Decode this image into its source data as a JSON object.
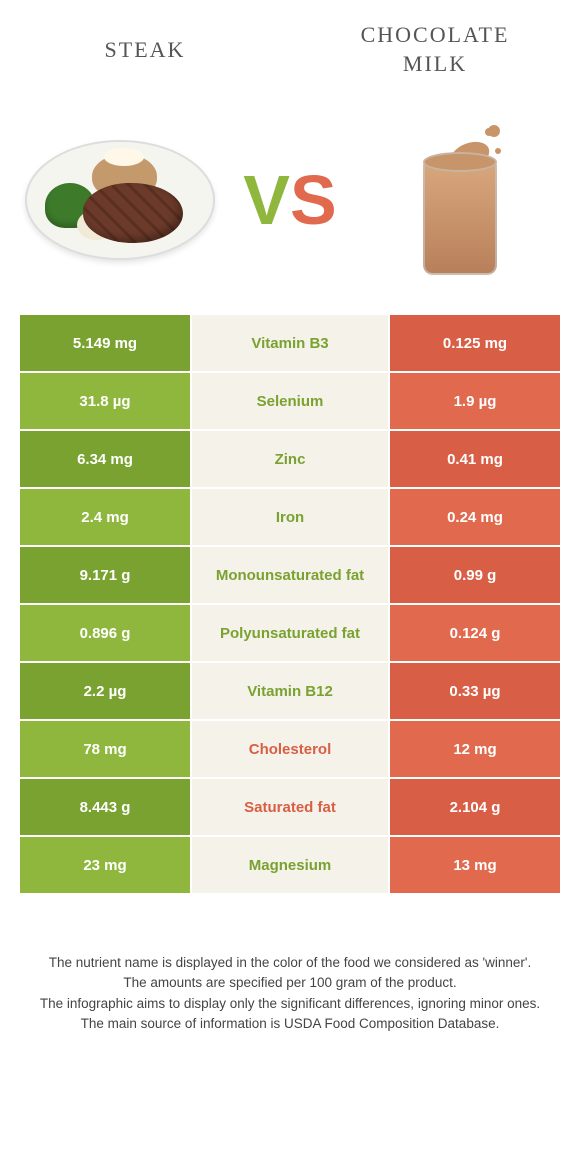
{
  "header": {
    "left": "STEAK",
    "right_line1": "CHOCOLATE",
    "right_line2": "MILK"
  },
  "vs": {
    "v": "V",
    "s": "S"
  },
  "colors": {
    "green_dark": "#7aa230",
    "green_light": "#8fb73e",
    "orange_dark": "#d85f45",
    "orange_light": "#e0694e",
    "mid_bg": "#f4f2e9",
    "text_green": "#7aa230",
    "text_orange": "#d85f45"
  },
  "rows": [
    {
      "left": "5.149 mg",
      "label": "Vitamin B3",
      "right": "0.125 mg",
      "winner": "left"
    },
    {
      "left": "31.8 µg",
      "label": "Selenium",
      "right": "1.9 µg",
      "winner": "left"
    },
    {
      "left": "6.34 mg",
      "label": "Zinc",
      "right": "0.41 mg",
      "winner": "left"
    },
    {
      "left": "2.4 mg",
      "label": "Iron",
      "right": "0.24 mg",
      "winner": "left"
    },
    {
      "left": "9.171 g",
      "label": "Monounsaturated fat",
      "right": "0.99 g",
      "winner": "left"
    },
    {
      "left": "0.896 g",
      "label": "Polyunsaturated fat",
      "right": "0.124 g",
      "winner": "left"
    },
    {
      "left": "2.2 µg",
      "label": "Vitamin B12",
      "right": "0.33 µg",
      "winner": "left"
    },
    {
      "left": "78 mg",
      "label": "Cholesterol",
      "right": "12 mg",
      "winner": "right"
    },
    {
      "left": "8.443 g",
      "label": "Saturated fat",
      "right": "2.104 g",
      "winner": "right"
    },
    {
      "left": "23 mg",
      "label": "Magnesium",
      "right": "13 mg",
      "winner": "left"
    }
  ],
  "footer": {
    "l1": "The nutrient name is displayed in the color of the food we considered as 'winner'.",
    "l2": "The amounts are specified per 100 gram of the product.",
    "l3": "The infographic aims to display only the significant differences, ignoring minor ones.",
    "l4": "The main source of information is USDA Food Composition Database."
  }
}
